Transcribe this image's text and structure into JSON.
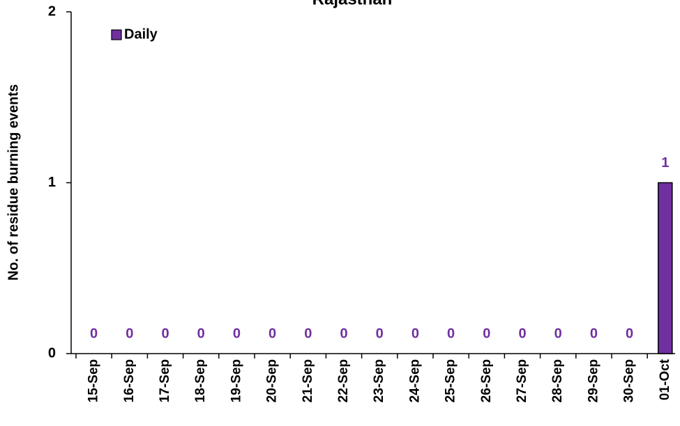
{
  "chart_data": {
    "type": "bar",
    "title": "Rajasthan",
    "y_label": "No. of residue burning events",
    "categories": [
      "15-Sep",
      "16-Sep",
      "17-Sep",
      "18-Sep",
      "19-Sep",
      "20-Sep",
      "21-Sep",
      "22-Sep",
      "23-Sep",
      "24-Sep",
      "25-Sep",
      "26-Sep",
      "27-Sep",
      "28-Sep",
      "29-Sep",
      "30-Sep",
      "01-Oct"
    ],
    "series": [
      {
        "name": "Daily",
        "color": "#7030a0",
        "values": [
          0,
          0,
          0,
          0,
          0,
          0,
          0,
          0,
          0,
          0,
          0,
          0,
          0,
          0,
          0,
          0,
          1
        ]
      }
    ],
    "ylim": [
      0,
      2
    ],
    "yticks": [
      0,
      1,
      2
    ],
    "legend": "upper left",
    "grid": false
  }
}
